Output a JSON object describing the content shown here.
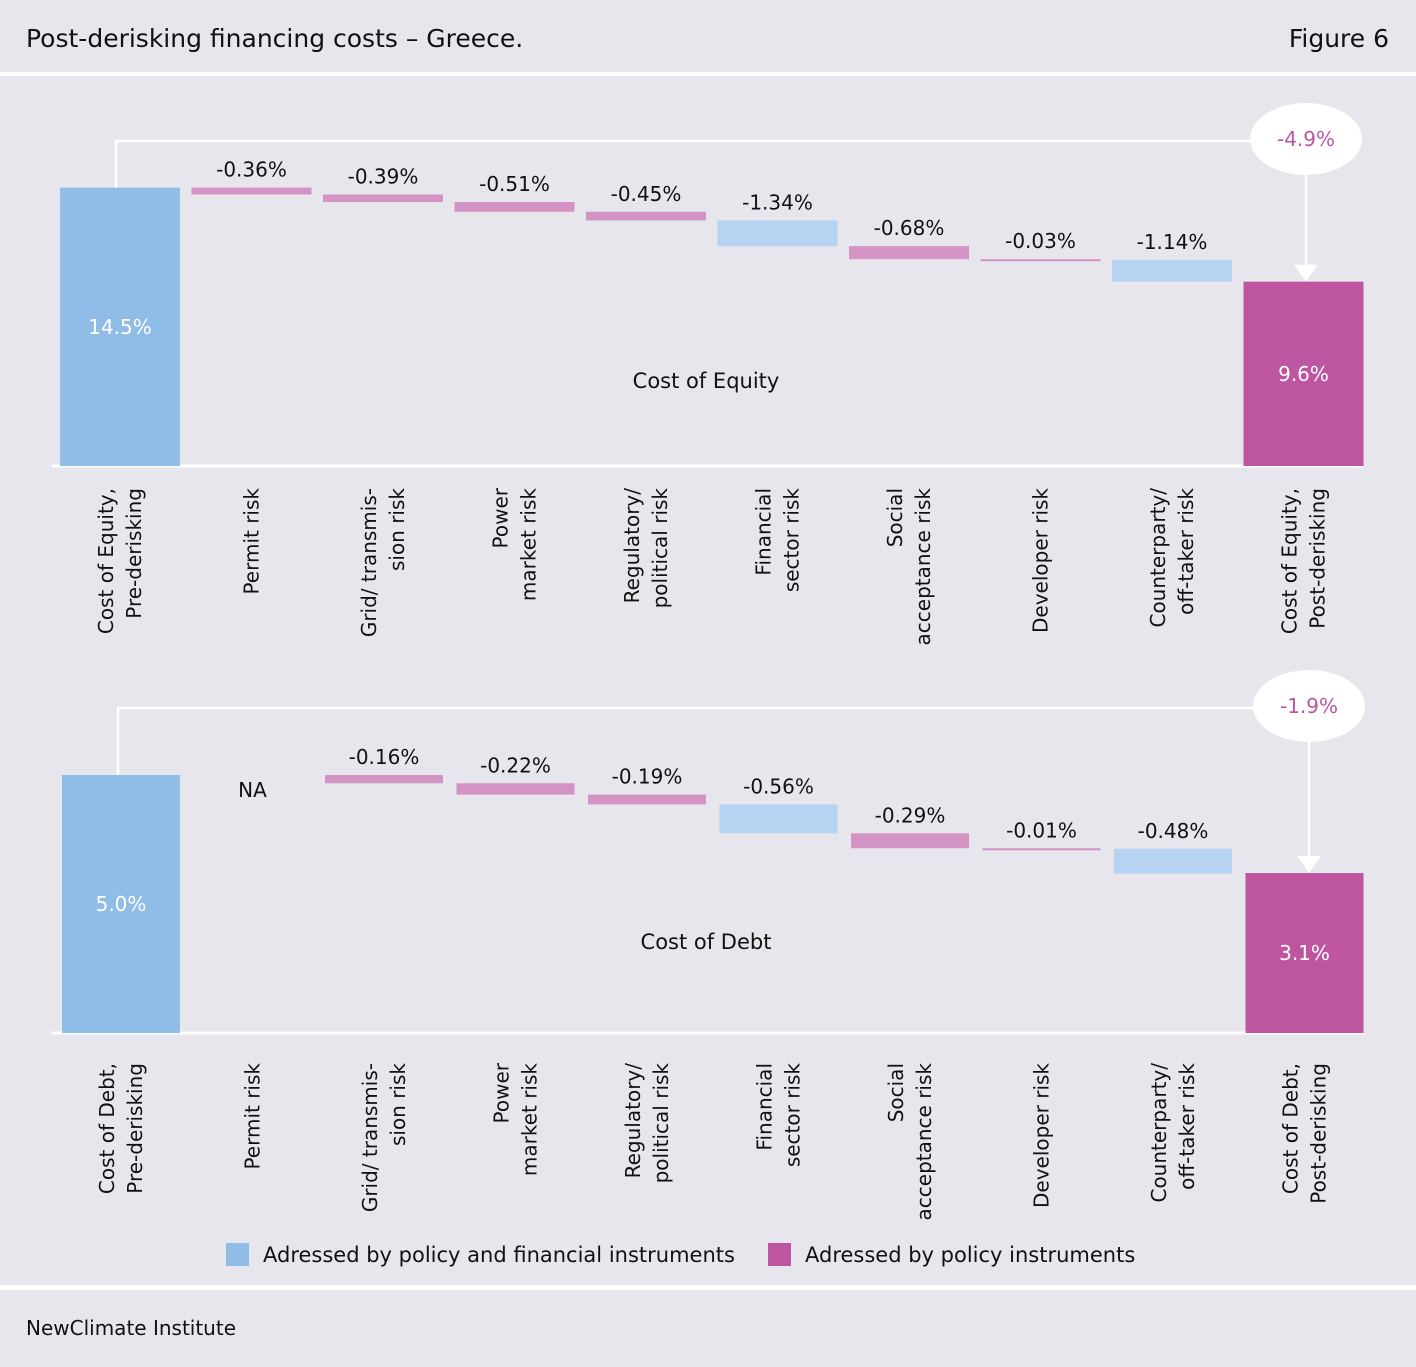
{
  "header": {
    "title": "Post-derisking financing costs – Greece.",
    "figure": "Figure 6"
  },
  "footer": {
    "source": "NewClimate Institute"
  },
  "colors": {
    "total_pre": "#90bce8",
    "total_post": "#bd55a0",
    "financial": "#b7d3f2",
    "policy": "#d493c5",
    "bubble_text": "#bd55a0"
  },
  "chart_data": [
    {
      "type": "bar",
      "subtype": "waterfall",
      "title": "Cost of Equity",
      "unit": "%",
      "categories": [
        [
          "Cost of Equity,",
          "Pre-derisking"
        ],
        [
          "Permit risk"
        ],
        [
          "Grid/ transmis-",
          "sion risk"
        ],
        [
          "Power",
          "market risk"
        ],
        [
          "Regulatory/",
          "political risk"
        ],
        [
          "Financial",
          "sector risk"
        ],
        [
          "Social",
          "acceptance risk"
        ],
        [
          "Developer risk"
        ],
        [
          "Counterparty/",
          "off-taker risk"
        ],
        [
          "Cost of Equity,",
          "Post-derisking"
        ]
      ],
      "values": [
        14.5,
        -0.36,
        -0.39,
        -0.51,
        -0.45,
        -1.34,
        -0.68,
        -0.03,
        -1.14,
        9.6
      ],
      "labels": [
        "14.5%",
        "-0.36%",
        "-0.39%",
        "-0.51%",
        "-0.45%",
        "-1.34%",
        "-0.68%",
        "-0.03%",
        "-1.14%",
        "9.6%"
      ],
      "instrument": [
        "total",
        "policy",
        "policy",
        "policy",
        "policy",
        "financial",
        "policy",
        "policy",
        "financial",
        "total"
      ],
      "total_change": "-4.9%"
    },
    {
      "type": "bar",
      "subtype": "waterfall",
      "title": "Cost of Debt",
      "unit": "%",
      "categories": [
        [
          "Cost of Debt,",
          "Pre-derisking"
        ],
        [
          "Permit risk"
        ],
        [
          "Grid/ transmis-",
          "sion risk"
        ],
        [
          "Power",
          "market risk"
        ],
        [
          "Regulatory/",
          "political risk"
        ],
        [
          "Financial",
          "sector risk"
        ],
        [
          "Social",
          "acceptance risk"
        ],
        [
          "Developer risk"
        ],
        [
          "Counterparty/",
          "off-taker risk"
        ],
        [
          "Cost of Debt,",
          "Post-derisking"
        ]
      ],
      "values": [
        5.0,
        null,
        -0.16,
        -0.22,
        -0.19,
        -0.56,
        -0.29,
        -0.01,
        -0.48,
        3.1
      ],
      "labels": [
        "5.0%",
        "NA",
        "-0.16%",
        "-0.22%",
        "-0.19%",
        "-0.56%",
        "-0.29%",
        "-0.01%",
        "-0.48%",
        "3.1%"
      ],
      "instrument": [
        "total",
        "none",
        "policy",
        "policy",
        "policy",
        "financial",
        "policy",
        "policy",
        "financial",
        "total"
      ],
      "total_change": "-1.9%"
    }
  ],
  "legend": [
    {
      "label": "Adressed by policy and financial instruments",
      "color": "#90bce8"
    },
    {
      "label": "Adressed by policy instruments",
      "color": "#bd55a0"
    }
  ]
}
